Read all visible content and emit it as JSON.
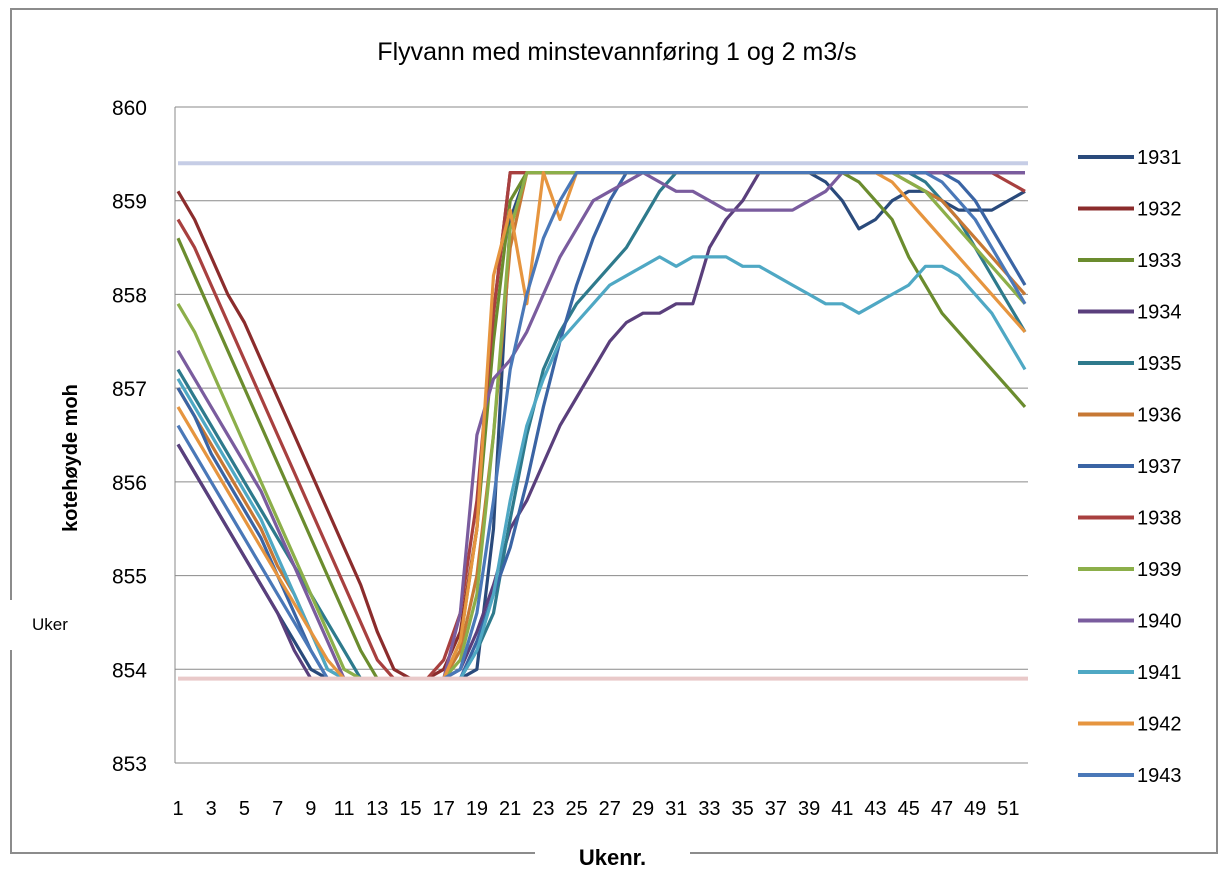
{
  "chart_data": {
    "type": "line",
    "title": "Flyvann med minstevannføring 1 og 2 m3/s",
    "xlabel": "Ukenr.",
    "ylabel": "kotehøyde moh",
    "side_note": "Uker",
    "ylim": [
      853,
      860
    ],
    "yticks": [
      853,
      854,
      855,
      856,
      857,
      858,
      859,
      860
    ],
    "x": [
      1,
      2,
      3,
      4,
      5,
      6,
      7,
      8,
      9,
      10,
      11,
      12,
      13,
      14,
      15,
      16,
      17,
      18,
      19,
      20,
      21,
      22,
      23,
      24,
      25,
      26,
      27,
      28,
      29,
      30,
      31,
      32,
      33,
      34,
      35,
      36,
      37,
      38,
      39,
      40,
      41,
      42,
      43,
      44,
      45,
      46,
      47,
      48,
      49,
      50,
      51,
      52
    ],
    "xtick_labels": [
      "1",
      "3",
      "5",
      "7",
      "9",
      "11",
      "13",
      "15",
      "17",
      "19",
      "21",
      "23",
      "25",
      "27",
      "29",
      "31",
      "33",
      "35",
      "37",
      "39",
      "41",
      "43",
      "45",
      "47",
      "49",
      "51"
    ],
    "grid": true,
    "legend_position": "right",
    "reference_lines": [
      {
        "value": 859.4,
        "color": "#c6cde6"
      },
      {
        "value": 853.9,
        "color": "#e9c9c9"
      }
    ],
    "series": [
      {
        "name": "1931",
        "color": "#2a4a7b",
        "values": [
          856.4,
          856.1,
          855.8,
          855.5,
          855.2,
          854.9,
          854.6,
          854.3,
          854.0,
          853.9,
          853.9,
          853.9,
          853.9,
          853.9,
          853.9,
          853.9,
          853.9,
          853.9,
          854.0,
          855.5,
          858.8,
          859.3,
          859.3,
          859.3,
          859.3,
          859.3,
          859.3,
          859.3,
          859.3,
          859.3,
          859.3,
          859.3,
          859.3,
          859.3,
          859.3,
          859.3,
          859.3,
          859.3,
          859.3,
          859.2,
          859.0,
          858.7,
          858.8,
          859.0,
          859.1,
          859.1,
          859.0,
          858.9,
          858.9,
          858.9,
          859.0,
          859.1
        ]
      },
      {
        "name": "1932",
        "color": "#8b2c2c",
        "values": [
          859.1,
          858.8,
          858.4,
          858.0,
          857.7,
          857.3,
          856.9,
          856.5,
          856.1,
          855.7,
          855.3,
          854.9,
          854.4,
          854.0,
          853.9,
          853.9,
          854.0,
          854.4,
          855.5,
          857.8,
          859.3,
          859.3,
          859.3,
          859.3,
          859.3,
          859.3,
          859.3,
          859.3,
          859.3,
          859.3,
          859.3,
          859.3,
          859.3,
          859.3,
          859.3,
          859.3,
          859.3,
          859.3,
          859.3,
          859.3,
          859.3,
          859.3,
          859.3,
          859.3,
          859.3,
          859.3,
          859.3,
          859.3,
          859.3,
          859.3,
          859.3,
          859.3
        ]
      },
      {
        "name": "1933",
        "color": "#6b8c2e",
        "values": [
          858.6,
          858.2,
          857.8,
          857.4,
          857.0,
          856.6,
          856.2,
          855.8,
          855.4,
          855.0,
          854.6,
          854.2,
          853.9,
          853.9,
          853.9,
          853.9,
          853.9,
          854.3,
          855.5,
          857.5,
          859.0,
          859.3,
          859.3,
          859.3,
          859.3,
          859.3,
          859.3,
          859.3,
          859.3,
          859.3,
          859.3,
          859.3,
          859.3,
          859.3,
          859.3,
          859.3,
          859.3,
          859.3,
          859.3,
          859.3,
          859.3,
          859.2,
          859.0,
          858.8,
          858.4,
          858.1,
          857.8,
          857.6,
          857.4,
          857.2,
          857.0,
          856.8
        ]
      },
      {
        "name": "1934",
        "color": "#5a3f7c",
        "values": [
          856.4,
          856.1,
          855.8,
          855.5,
          855.2,
          854.9,
          854.6,
          854.2,
          853.9,
          853.9,
          853.9,
          853.9,
          853.9,
          853.9,
          853.9,
          853.9,
          853.9,
          854.0,
          854.4,
          854.9,
          855.5,
          855.8,
          856.2,
          856.6,
          856.9,
          857.2,
          857.5,
          857.7,
          857.8,
          857.8,
          857.9,
          857.9,
          858.5,
          858.8,
          859.0,
          859.3,
          859.3,
          859.3,
          859.3,
          859.3,
          859.3,
          859.3,
          859.3,
          859.3,
          859.3,
          859.3,
          859.3,
          859.3,
          859.3,
          859.3,
          859.3,
          859.3
        ]
      },
      {
        "name": "1935",
        "color": "#2e7a8c",
        "values": [
          857.2,
          856.9,
          856.6,
          856.3,
          856.0,
          855.7,
          855.4,
          855.1,
          854.8,
          854.5,
          854.2,
          853.9,
          853.9,
          853.9,
          853.9,
          853.9,
          853.9,
          853.9,
          854.2,
          854.6,
          855.6,
          856.5,
          857.2,
          857.6,
          857.9,
          858.1,
          858.3,
          858.5,
          858.8,
          859.1,
          859.3,
          859.3,
          859.3,
          859.3,
          859.3,
          859.3,
          859.3,
          859.3,
          859.3,
          859.3,
          859.3,
          859.3,
          859.3,
          859.3,
          859.3,
          859.2,
          859.0,
          858.8,
          858.5,
          858.2,
          857.9,
          857.6
        ]
      },
      {
        "name": "1936",
        "color": "#c77834",
        "values": [
          857.0,
          856.7,
          856.4,
          856.1,
          855.8,
          855.5,
          855.1,
          854.8,
          854.4,
          854.0,
          853.9,
          853.9,
          853.9,
          853.9,
          853.9,
          853.9,
          853.9,
          854.2,
          855.0,
          856.5,
          858.5,
          859.3,
          859.3,
          859.3,
          859.3,
          859.3,
          859.3,
          859.3,
          859.3,
          859.3,
          859.3,
          859.3,
          859.3,
          859.3,
          859.3,
          859.3,
          859.3,
          859.3,
          859.3,
          859.3,
          859.3,
          859.3,
          859.3,
          859.3,
          859.2,
          859.1,
          859.0,
          858.8,
          858.6,
          858.4,
          858.2,
          858.0
        ]
      },
      {
        "name": "1937",
        "color": "#3a64a4",
        "values": [
          857.0,
          856.7,
          856.3,
          856.0,
          855.7,
          855.4,
          855.0,
          854.6,
          854.2,
          853.9,
          853.9,
          853.9,
          853.9,
          853.9,
          853.9,
          853.9,
          853.9,
          853.9,
          854.3,
          854.8,
          855.3,
          856.0,
          856.8,
          857.5,
          858.1,
          858.6,
          859.0,
          859.3,
          859.3,
          859.3,
          859.3,
          859.3,
          859.3,
          859.3,
          859.3,
          859.3,
          859.3,
          859.3,
          859.3,
          859.3,
          859.3,
          859.3,
          859.3,
          859.3,
          859.3,
          859.3,
          859.3,
          859.2,
          859.0,
          858.7,
          858.4,
          858.1
        ]
      },
      {
        "name": "1938",
        "color": "#a8403f",
        "values": [
          858.8,
          858.5,
          858.1,
          857.7,
          857.3,
          856.9,
          856.5,
          856.1,
          855.7,
          855.3,
          854.9,
          854.5,
          854.1,
          853.9,
          853.9,
          853.9,
          854.1,
          854.6,
          855.8,
          857.8,
          859.3,
          859.3,
          859.3,
          859.3,
          859.3,
          859.3,
          859.3,
          859.3,
          859.3,
          859.3,
          859.3,
          859.3,
          859.3,
          859.3,
          859.3,
          859.3,
          859.3,
          859.3,
          859.3,
          859.3,
          859.3,
          859.3,
          859.3,
          859.3,
          859.3,
          859.3,
          859.3,
          859.3,
          859.3,
          859.3,
          859.2,
          859.1
        ]
      },
      {
        "name": "1939",
        "color": "#8caf4a",
        "values": [
          857.9,
          857.6,
          857.2,
          856.8,
          856.4,
          856.0,
          855.6,
          855.2,
          854.8,
          854.4,
          854.0,
          853.9,
          853.9,
          853.9,
          853.9,
          853.9,
          853.9,
          854.1,
          854.8,
          856.5,
          858.7,
          859.3,
          859.3,
          859.3,
          859.3,
          859.3,
          859.3,
          859.3,
          859.3,
          859.3,
          859.3,
          859.3,
          859.3,
          859.3,
          859.3,
          859.3,
          859.3,
          859.3,
          859.3,
          859.3,
          859.3,
          859.3,
          859.3,
          859.3,
          859.2,
          859.1,
          858.9,
          858.7,
          858.5,
          858.3,
          858.1,
          857.9
        ]
      },
      {
        "name": "1940",
        "color": "#7a5c9e",
        "values": [
          857.4,
          857.1,
          856.8,
          856.5,
          856.2,
          855.9,
          855.5,
          855.1,
          854.7,
          854.3,
          853.9,
          853.9,
          853.9,
          853.9,
          853.9,
          853.9,
          853.9,
          854.6,
          856.5,
          857.1,
          857.3,
          857.6,
          858.0,
          858.4,
          858.7,
          859.0,
          859.1,
          859.2,
          859.3,
          859.2,
          859.1,
          859.1,
          859.0,
          858.9,
          858.9,
          858.9,
          858.9,
          858.9,
          859.0,
          859.1,
          859.3,
          859.3,
          859.3,
          859.3,
          859.3,
          859.3,
          859.3,
          859.3,
          859.3,
          859.3,
          859.3,
          859.3
        ]
      },
      {
        "name": "1941",
        "color": "#4fa8c4",
        "values": [
          857.1,
          856.8,
          856.5,
          856.2,
          855.9,
          855.6,
          855.2,
          854.8,
          854.4,
          854.0,
          853.9,
          853.9,
          853.9,
          853.9,
          853.9,
          853.9,
          853.9,
          853.9,
          854.2,
          854.8,
          855.8,
          856.6,
          857.1,
          857.5,
          857.7,
          857.9,
          858.1,
          858.2,
          858.3,
          858.4,
          858.3,
          858.4,
          858.4,
          858.4,
          858.3,
          858.3,
          858.2,
          858.1,
          858.0,
          857.9,
          857.9,
          857.8,
          857.9,
          858.0,
          858.1,
          858.3,
          858.3,
          858.2,
          858.0,
          857.8,
          857.5,
          857.2
        ]
      },
      {
        "name": "1942",
        "color": "#e6953f",
        "values": [
          856.8,
          856.5,
          856.2,
          855.9,
          855.6,
          855.3,
          855.0,
          854.7,
          854.4,
          854.1,
          853.9,
          853.9,
          853.9,
          853.9,
          853.9,
          853.9,
          853.9,
          854.3,
          855.5,
          858.2,
          858.9,
          857.9,
          859.3,
          858.8,
          859.3,
          859.3,
          859.3,
          859.3,
          859.3,
          859.3,
          859.3,
          859.3,
          859.3,
          859.3,
          859.3,
          859.3,
          859.3,
          859.3,
          859.3,
          859.3,
          859.3,
          859.3,
          859.3,
          859.2,
          859.0,
          858.8,
          858.6,
          858.4,
          858.2,
          858.0,
          857.8,
          857.6
        ]
      },
      {
        "name": "1943",
        "color": "#4a78b8",
        "values": [
          856.6,
          856.3,
          856.0,
          855.7,
          855.4,
          855.1,
          854.8,
          854.5,
          854.2,
          853.9,
          853.9,
          853.9,
          853.9,
          853.9,
          853.9,
          853.9,
          853.9,
          854.0,
          854.6,
          855.8,
          857.2,
          858.0,
          858.6,
          859.0,
          859.3,
          859.3,
          859.3,
          859.3,
          859.3,
          859.3,
          859.3,
          859.3,
          859.3,
          859.3,
          859.3,
          859.3,
          859.3,
          859.3,
          859.3,
          859.3,
          859.3,
          859.3,
          859.3,
          859.3,
          859.3,
          859.3,
          859.2,
          859.0,
          858.8,
          858.5,
          858.2,
          857.9
        ]
      }
    ]
  }
}
